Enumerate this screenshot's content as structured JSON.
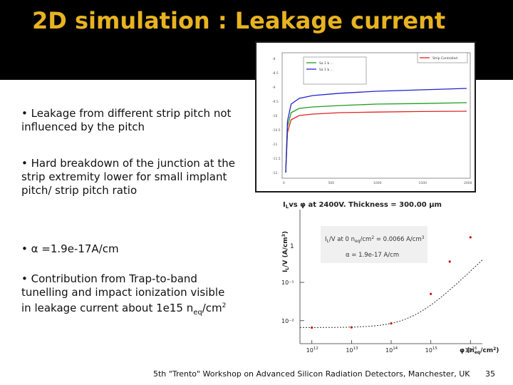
{
  "slide": {
    "title": "2D simulation : Leakage current",
    "bullets": [
      {
        "text": "• Leakage from different strip pitch not influenced by the pitch"
      },
      {
        "text": "• Hard breakdown of the junction at the strip extremity lower for small implant pitch/ strip pitch ratio"
      },
      {
        "text": "• α =1.9e-17A/cm"
      },
      {
        "text_before": "• Contribution from Trap-to-band tunelling and impact ionization visible in leakage current about 1e15 n",
        "sub": "eq",
        "text_after": "/cm",
        "sup": "2"
      }
    ],
    "footer": "5th \"Trento\" Workshop on Advanced Silicon Radiation Detectors, Manchester, UK",
    "page_number": "35"
  },
  "chart_data": [
    {
      "type": "line",
      "title": "",
      "xlim": [
        0,
        2000
      ],
      "x_ticks": [
        "0",
        "500",
        "1000",
        "1500",
        "2000"
      ],
      "y_ticks": [
        "-8",
        "-8.5",
        "-9",
        "-9.5",
        "-10",
        "-10.5",
        "-11",
        "-11.5",
        "-12"
      ],
      "legend": [
        {
          "label": "Strip Controlled",
          "color": "#e02424"
        },
        {
          "label": "Sa 1 b ... ",
          "color": "#1f9d1f"
        },
        {
          "label": "Sa 1 b ...",
          "color": "#2222cc"
        }
      ],
      "series": [
        {
          "color": "#e02424",
          "x": [
            0,
            20,
            60,
            150,
            300,
            600,
            1000,
            1500,
            2000
          ],
          "y": [
            -12,
            -10.6,
            -10.15,
            -10.0,
            -9.95,
            -9.9,
            -9.88,
            -9.86,
            -9.85
          ]
        },
        {
          "color": "#1f9d1f",
          "x": [
            0,
            20,
            60,
            150,
            300,
            600,
            1000,
            1500,
            2000
          ],
          "y": [
            -12,
            -10.4,
            -9.9,
            -9.75,
            -9.7,
            -9.65,
            -9.6,
            -9.58,
            -9.55
          ]
        },
        {
          "color": "#2222cc",
          "x": [
            0,
            20,
            60,
            150,
            300,
            600,
            1000,
            1500,
            2000
          ],
          "y": [
            -12,
            -10.2,
            -9.6,
            -9.4,
            -9.3,
            -9.22,
            -9.15,
            -9.1,
            -9.05
          ]
        }
      ]
    },
    {
      "type": "scatter",
      "title": "I_L vs φ at 2400V. Thickness = 300.00 μm",
      "title_parts": {
        "main": "vs ",
        "phi": "φ",
        "rest": " at 2400V. Thickness = 300.00 ",
        "unit": "μm"
      },
      "ylabel": "I_L/V (A/cm³)",
      "xlabel": "φ (n_eq/cm²)",
      "x_tick_exponents": [
        "12",
        "13",
        "14",
        "15",
        "16"
      ],
      "y_ticks": [
        "10⁻¹",
        "10⁻²"
      ],
      "y_tick_one": "1",
      "annotation": [
        "I_L/V at 0 n_eq/cm² = 0.0066 A/cm³",
        "α = 1.9e-17 A/cm"
      ],
      "points": [
        {
          "phi": 1000000000000.0,
          "i": 0.0066
        },
        {
          "phi": 10000000000000.0,
          "i": 0.0067
        },
        {
          "phi": 100000000000000.0,
          "i": 0.0085
        },
        {
          "phi": 1000000000000000.0,
          "i": 0.05
        },
        {
          "phi": 3000000000000000.0,
          "i": 0.35
        },
        {
          "phi": 1e+16,
          "i": 1.5
        }
      ],
      "fit_line": {
        "alpha": 1.9e-17,
        "i0": 0.0066
      }
    }
  ]
}
